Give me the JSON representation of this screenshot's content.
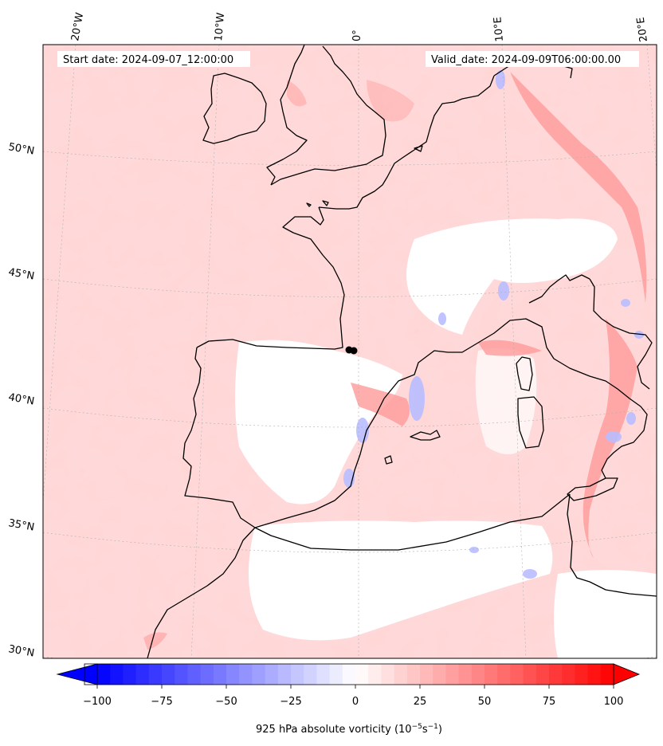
{
  "header": {
    "start_date": "Start date: 2024-09-07_12:00:00",
    "valid_date": "Valid_date: 2024-09-09T06:00:00.00"
  },
  "lon_labels": [
    "20°W",
    "10°W",
    "0°",
    "10°E",
    "20°E"
  ],
  "lat_labels": [
    "50°N",
    "45°N",
    "40°N",
    "35°N",
    "30°N"
  ],
  "colorbar": {
    "label_main": "925 hPa absolute vorticity (10",
    "label_exp1": "−5",
    "label_mid": "s",
    "label_exp2": "−1",
    "label_end": ")",
    "ticks": [
      "−100",
      "−75",
      "−50",
      "−25",
      "0",
      "25",
      "50",
      "75",
      "100"
    ],
    "min": -100,
    "max": 100,
    "levels": 40,
    "colors": {
      "neg": "#0000ff",
      "zero": "#ffffff",
      "pos": "#ff0000"
    }
  },
  "colors": {
    "coastline": "#000000",
    "gridline": "#aaaaaa",
    "marker": "#000000"
  }
}
